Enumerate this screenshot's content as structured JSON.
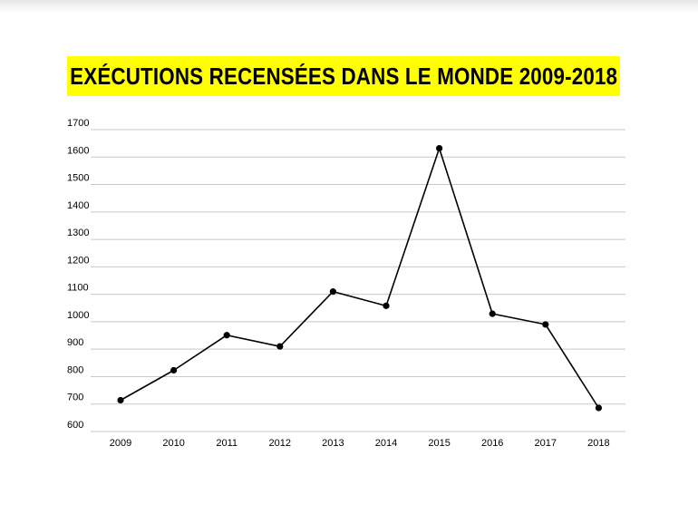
{
  "chart_data": {
    "type": "line",
    "title": "EXÉCUTIONS RECENSÉES DANS LE MONDE 2009-2018",
    "xlabel": "",
    "ylabel": "",
    "categories": [
      "2009",
      "2010",
      "2011",
      "2012",
      "2013",
      "2014",
      "2015",
      "2016",
      "2017",
      "2018"
    ],
    "series": [
      {
        "values": [
          714,
          823,
          951,
          910,
          1110,
          1058,
          1632,
          1029,
          990,
          686
        ]
      }
    ],
    "yticks": [
      "600",
      "700",
      "800",
      "900",
      "1000",
      "1100",
      "1200",
      "1300",
      "1400",
      "1500",
      "1600",
      "1700"
    ],
    "ylim": [
      600,
      1700
    ],
    "grid": true,
    "legend": "none",
    "colors": {
      "line": "#000000",
      "grid": "#c8c8c8",
      "title_bg": "#ffff00"
    }
  }
}
